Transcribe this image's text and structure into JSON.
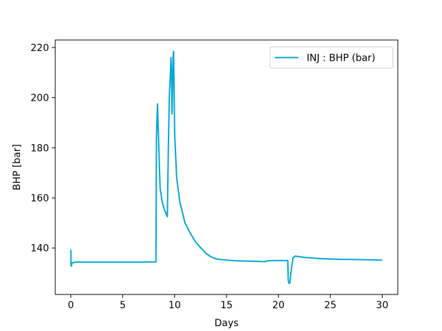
{
  "chart_data": {
    "type": "line",
    "xlabel": "Days",
    "ylabel": "BHP [bar]",
    "xlim": [
      -1.5,
      31.5
    ],
    "ylim": [
      121.5,
      223
    ],
    "xticks": [
      0,
      5,
      10,
      15,
      20,
      25,
      30
    ],
    "yticks": [
      140,
      160,
      180,
      200,
      220
    ],
    "grid": false,
    "legend_position": "top-right",
    "series": [
      {
        "name": "INJ : BHP (bar)",
        "color": "#00a6d6",
        "x": [
          0,
          0.02,
          0.05,
          0.1,
          0.3,
          0.7,
          1.5,
          3,
          5,
          7,
          8.2,
          8.25,
          8.35,
          8.45,
          8.6,
          8.8,
          9.0,
          9.2,
          9.3,
          9.4,
          9.5,
          9.6,
          9.65,
          9.7,
          9.75,
          9.8,
          9.85,
          9.9,
          9.95,
          10.0,
          10.2,
          10.5,
          11.0,
          11.5,
          12.0,
          12.5,
          13.0,
          13.5,
          14.0,
          14.5,
          15.0,
          16.0,
          17.0,
          18.0,
          18.5,
          18.7,
          19.0,
          19.5,
          20.0,
          20.5,
          20.9,
          20.95,
          21.0,
          21.1,
          21.2,
          21.4,
          21.6,
          21.8,
          22.5,
          24,
          26,
          28,
          30
        ],
        "y": [
          139.3,
          133.0,
          132.8,
          134.0,
          134.3,
          134.4,
          134.4,
          134.4,
          134.4,
          134.4,
          134.5,
          184.0,
          197.5,
          184.0,
          164.0,
          158.5,
          155.5,
          153.5,
          152.5,
          181.0,
          202.0,
          210.0,
          216.0,
          209.0,
          193.5,
          205.0,
          216.0,
          218.5,
          204.0,
          186.0,
          168.0,
          158.5,
          150.0,
          146.0,
          142.5,
          140.2,
          138.0,
          136.5,
          135.7,
          135.4,
          135.2,
          134.9,
          134.8,
          134.7,
          134.6,
          134.6,
          134.9,
          135.0,
          135.0,
          135.0,
          135.0,
          127.0,
          126.0,
          126.0,
          130.0,
          136.0,
          136.8,
          136.7,
          136.3,
          135.8,
          135.5,
          135.4,
          135.2
        ]
      }
    ]
  }
}
